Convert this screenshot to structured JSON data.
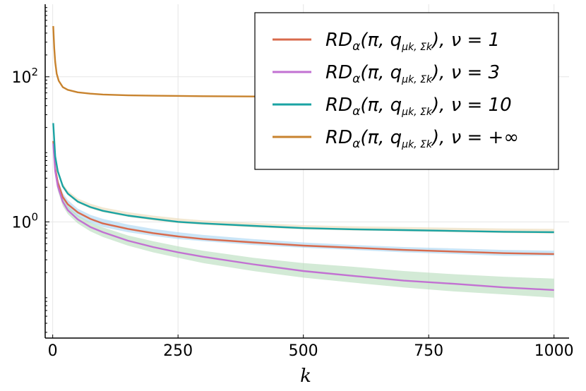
{
  "chart_data": {
    "type": "line",
    "title": "",
    "xlabel": "k",
    "ylabel": "",
    "xlim": [
      -15,
      1030
    ],
    "xticks": [
      0,
      250,
      500,
      750,
      1000
    ],
    "ylog": true,
    "ylim": [
      0.025,
      1000
    ],
    "yticks": [
      {
        "value": 1,
        "base": "10",
        "exp": "0"
      },
      {
        "value": 100,
        "base": "10",
        "exp": "2"
      }
    ],
    "grid": true,
    "legend_position": "top-right",
    "series": [
      {
        "name": "RDα(π, qμk, Σk), ν = 1",
        "legend": {
          "main": "RD",
          "alpha": "α",
          "args_open": "(π, q",
          "sub": "μk, Σk",
          "args_close": "), ν = 1"
        },
        "color": "#d86a4c",
        "band_color": "#a7d3f2",
        "x": [
          1,
          5,
          10,
          20,
          30,
          50,
          75,
          100,
          150,
          200,
          250,
          300,
          400,
          500,
          600,
          700,
          800,
          900,
          1000
        ],
        "y": [
          13,
          5.5,
          3.5,
          2.2,
          1.75,
          1.35,
          1.1,
          0.95,
          0.8,
          0.7,
          0.63,
          0.58,
          0.52,
          0.47,
          0.44,
          0.41,
          0.39,
          0.37,
          0.36
        ],
        "y_lo": [
          11,
          4.8,
          3.0,
          1.9,
          1.5,
          1.18,
          0.97,
          0.85,
          0.72,
          0.64,
          0.58,
          0.54,
          0.48,
          0.44,
          0.41,
          0.38,
          0.36,
          0.34,
          0.34
        ],
        "y_hi": [
          15,
          6.3,
          4.0,
          2.5,
          2.0,
          1.52,
          1.25,
          1.1,
          0.92,
          0.8,
          0.72,
          0.66,
          0.58,
          0.52,
          0.48,
          0.45,
          0.43,
          0.41,
          0.4
        ]
      },
      {
        "name": "RDα(π, qμk, Σk), ν = 3",
        "legend": {
          "main": "RD",
          "alpha": "α",
          "args_open": "(π, q",
          "sub": "μk, Σk",
          "args_close": "), ν = 3"
        },
        "color": "#c271d2",
        "band_color": "#b6dcba",
        "x": [
          1,
          5,
          10,
          20,
          30,
          50,
          75,
          100,
          150,
          200,
          250,
          300,
          400,
          500,
          600,
          700,
          800,
          900,
          1000
        ],
        "y": [
          12,
          5.0,
          3.1,
          1.9,
          1.45,
          1.08,
          0.85,
          0.72,
          0.55,
          0.45,
          0.38,
          0.33,
          0.26,
          0.21,
          0.18,
          0.155,
          0.14,
          0.125,
          0.115
        ],
        "y_lo": [
          10.5,
          4.4,
          2.7,
          1.65,
          1.28,
          0.95,
          0.74,
          0.62,
          0.47,
          0.38,
          0.32,
          0.27,
          0.21,
          0.17,
          0.145,
          0.125,
          0.11,
          0.1,
          0.09
        ],
        "y_hi": [
          13.5,
          5.6,
          3.5,
          2.15,
          1.65,
          1.23,
          0.98,
          0.84,
          0.65,
          0.54,
          0.46,
          0.4,
          0.32,
          0.27,
          0.24,
          0.21,
          0.19,
          0.175,
          0.165
        ]
      },
      {
        "name": "RDα(π, qμk, Σk), ν = 10",
        "legend": {
          "main": "RD",
          "alpha": "α",
          "args_open": "(π, q",
          "sub": "μk, Σk",
          "args_close": "), ν = 10"
        },
        "color": "#1aa3a3",
        "band_color": "#e9d8b4",
        "x": [
          1,
          5,
          10,
          20,
          30,
          50,
          75,
          100,
          150,
          200,
          250,
          300,
          400,
          500,
          600,
          700,
          800,
          900,
          1000
        ],
        "y": [
          23,
          8.0,
          5.0,
          3.1,
          2.45,
          1.9,
          1.6,
          1.42,
          1.22,
          1.1,
          1.0,
          0.95,
          0.88,
          0.82,
          0.79,
          0.77,
          0.75,
          0.73,
          0.72
        ],
        "y_lo": [
          22,
          7.6,
          4.7,
          2.95,
          2.35,
          1.82,
          1.53,
          1.36,
          1.17,
          1.05,
          0.96,
          0.91,
          0.84,
          0.79,
          0.76,
          0.74,
          0.72,
          0.7,
          0.69
        ],
        "y_hi": [
          24,
          8.6,
          5.4,
          3.4,
          2.7,
          2.1,
          1.78,
          1.58,
          1.36,
          1.22,
          1.12,
          1.05,
          0.97,
          0.9,
          0.87,
          0.85,
          0.83,
          0.81,
          0.8
        ]
      },
      {
        "name": "RDα(π, qμk, Σk), ν = +∞",
        "legend": {
          "main": "RD",
          "alpha": "α",
          "args_open": "(π, q",
          "sub": "μk, Σk",
          "args_close": "), ν = +∞"
        },
        "color": "#c8832e",
        "band_color": "",
        "x": [
          1,
          3,
          5,
          8,
          12,
          20,
          30,
          50,
          75,
          100,
          150,
          200,
          300,
          400,
          500,
          600,
          700,
          800,
          900,
          1000
        ],
        "y": [
          500,
          250,
          160,
          110,
          88,
          72,
          66,
          61,
          58.5,
          57,
          55.5,
          54.8,
          54,
          53.5,
          53.1,
          52.8,
          52.6,
          52.4,
          52.2,
          52
        ]
      }
    ]
  }
}
